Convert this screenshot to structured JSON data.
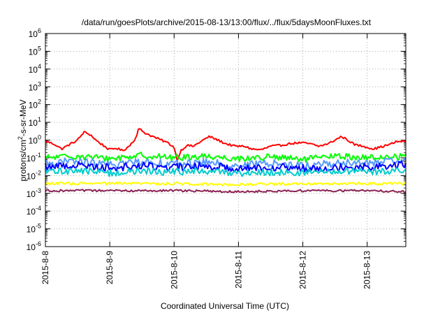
{
  "chart_data": {
    "type": "line",
    "title": "/data/run/goesPlots/archive/2015-08-13/13:00/flux/../flux/5daysMoonFluxes.txt",
    "xlabel": "Coordinated Universal Time (UTC)",
    "ylabel": {
      "prefix": "protons/cm",
      "superscript": "2",
      "suffix": "-s-sr-MeV"
    },
    "y_scale": "log",
    "y_range_exponent": [
      -6,
      6
    ],
    "y_tick_base": "10",
    "y_tick_exponents": [
      "-6",
      "-5",
      "-4",
      "-3",
      "-2",
      "-1",
      "0",
      "1",
      "2",
      "3",
      "4",
      "5",
      "6"
    ],
    "x_range_days": [
      0,
      5.6
    ],
    "x_tick_labels": [
      "2015-8-8",
      "2015-8-9",
      "2015-8-10",
      "2015-8-11",
      "2015-8-12",
      "2015-8-13"
    ],
    "x_ticks_day": [
      0,
      1,
      2,
      3,
      4,
      5
    ],
    "grid": true,
    "legend": "none",
    "series": [
      {
        "color": "#ff0000",
        "stroke": 2,
        "jitter": 0.06,
        "points": [
          [
            0,
            -0.05
          ],
          [
            0.15,
            -0.25
          ],
          [
            0.25,
            -0.5
          ],
          [
            0.35,
            -0.3
          ],
          [
            0.5,
            0.0
          ],
          [
            0.6,
            0.45
          ],
          [
            0.7,
            0.3
          ],
          [
            0.8,
            -0.05
          ],
          [
            0.9,
            -0.3
          ],
          [
            1.0,
            -0.55
          ],
          [
            1.1,
            -0.45
          ],
          [
            1.2,
            -0.6
          ],
          [
            1.3,
            -0.35
          ],
          [
            1.4,
            0.1
          ],
          [
            1.45,
            0.65
          ],
          [
            1.55,
            0.4
          ],
          [
            1.7,
            0.15
          ],
          [
            1.8,
            0.0
          ],
          [
            1.9,
            -0.15
          ],
          [
            2.0,
            -0.4
          ],
          [
            2.05,
            -1.2
          ],
          [
            2.1,
            -0.6
          ],
          [
            2.2,
            -0.3
          ],
          [
            2.3,
            -0.35
          ],
          [
            2.45,
            0.0
          ],
          [
            2.55,
            0.2
          ],
          [
            2.65,
            0.05
          ],
          [
            2.8,
            -0.2
          ],
          [
            2.95,
            -0.35
          ],
          [
            3.1,
            -0.35
          ],
          [
            3.2,
            -0.5
          ],
          [
            3.35,
            -0.55
          ],
          [
            3.5,
            -0.35
          ],
          [
            3.65,
            -0.3
          ],
          [
            3.8,
            -0.2
          ],
          [
            3.95,
            -0.15
          ],
          [
            4.1,
            -0.2
          ],
          [
            4.25,
            -0.35
          ],
          [
            4.4,
            -0.2
          ],
          [
            4.5,
            0.0
          ],
          [
            4.6,
            0.2
          ],
          [
            4.7,
            0.0
          ],
          [
            4.8,
            -0.25
          ],
          [
            4.95,
            -0.35
          ],
          [
            5.1,
            -0.5
          ],
          [
            5.2,
            -0.4
          ],
          [
            5.35,
            -0.25
          ],
          [
            5.45,
            -0.1
          ],
          [
            5.6,
            -0.05
          ]
        ]
      },
      {
        "color": "#00ff00",
        "stroke": 2,
        "jitter": 0.18,
        "points": [
          [
            0,
            -1.0
          ],
          [
            0.5,
            -0.9
          ],
          [
            1.0,
            -1.05
          ],
          [
            1.5,
            -0.85
          ],
          [
            2.0,
            -1.0
          ],
          [
            2.5,
            -0.9
          ],
          [
            3.0,
            -1.05
          ],
          [
            3.5,
            -0.95
          ],
          [
            4.0,
            -1.1
          ],
          [
            4.5,
            -0.9
          ],
          [
            5.0,
            -1.0
          ],
          [
            5.6,
            -0.9
          ]
        ]
      },
      {
        "color": "#5599ff",
        "stroke": 2,
        "jitter": 0.22,
        "points": [
          [
            0,
            -1.3
          ],
          [
            0.5,
            -1.2
          ],
          [
            1.0,
            -1.4
          ],
          [
            1.5,
            -1.2
          ],
          [
            2.0,
            -1.35
          ],
          [
            2.5,
            -1.25
          ],
          [
            3.0,
            -1.45
          ],
          [
            3.5,
            -1.3
          ],
          [
            4.0,
            -1.45
          ],
          [
            4.5,
            -1.3
          ],
          [
            5.0,
            -1.3
          ],
          [
            5.6,
            -1.2
          ]
        ]
      },
      {
        "color": "#0000ff",
        "stroke": 2,
        "jitter": 0.22,
        "points": [
          [
            0,
            -1.5
          ],
          [
            0.5,
            -1.4
          ],
          [
            1.0,
            -1.55
          ],
          [
            1.5,
            -1.45
          ],
          [
            2.0,
            -1.55
          ],
          [
            2.5,
            -1.45
          ],
          [
            3.0,
            -1.6
          ],
          [
            3.5,
            -1.5
          ],
          [
            4.0,
            -1.6
          ],
          [
            4.5,
            -1.5
          ],
          [
            5.0,
            -1.5
          ],
          [
            5.6,
            -1.4
          ]
        ]
      },
      {
        "color": "#00cccc",
        "stroke": 2,
        "jitter": 0.2,
        "points": [
          [
            0,
            -1.8
          ],
          [
            0.5,
            -1.7
          ],
          [
            1.0,
            -1.85
          ],
          [
            1.5,
            -1.75
          ],
          [
            2.0,
            -1.8
          ],
          [
            2.5,
            -1.75
          ],
          [
            3.0,
            -1.85
          ],
          [
            3.5,
            -1.8
          ],
          [
            4.0,
            -1.85
          ],
          [
            4.5,
            -1.75
          ],
          [
            5.0,
            -1.8
          ],
          [
            5.6,
            -1.7
          ]
        ]
      },
      {
        "color": "#ffff00",
        "stroke": 2,
        "jitter": 0.08,
        "points": [
          [
            0,
            -2.45
          ],
          [
            1.0,
            -2.45
          ],
          [
            2.0,
            -2.45
          ],
          [
            3.0,
            -2.5
          ],
          [
            4.0,
            -2.45
          ],
          [
            5.0,
            -2.45
          ],
          [
            5.6,
            -2.45
          ]
        ]
      },
      {
        "color": "#8b2252",
        "stroke": 2,
        "jitter": 0.06,
        "points": [
          [
            0,
            -2.85
          ],
          [
            1.0,
            -2.85
          ],
          [
            2.0,
            -2.85
          ],
          [
            3.0,
            -2.9
          ],
          [
            4.0,
            -2.85
          ],
          [
            5.0,
            -2.85
          ],
          [
            5.6,
            -2.9
          ]
        ]
      }
    ]
  }
}
